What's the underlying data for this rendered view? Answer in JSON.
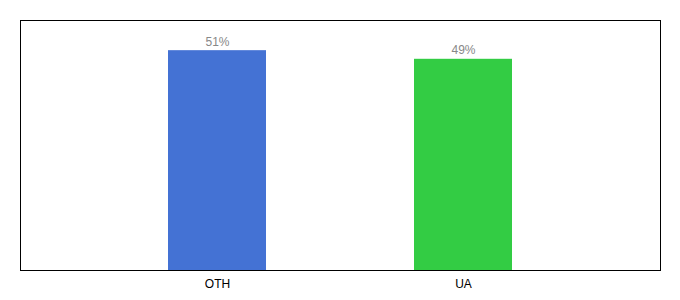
{
  "chart_data": {
    "type": "bar",
    "categories": [
      "OTH",
      "UA"
    ],
    "values": [
      51,
      49
    ],
    "value_labels": [
      "51%",
      "49%"
    ],
    "colors": [
      "#4472d4",
      "#33cc44"
    ],
    "ylim": [
      0,
      58
    ],
    "data_labels": true,
    "tick_labels": "x",
    "grid": false
  }
}
